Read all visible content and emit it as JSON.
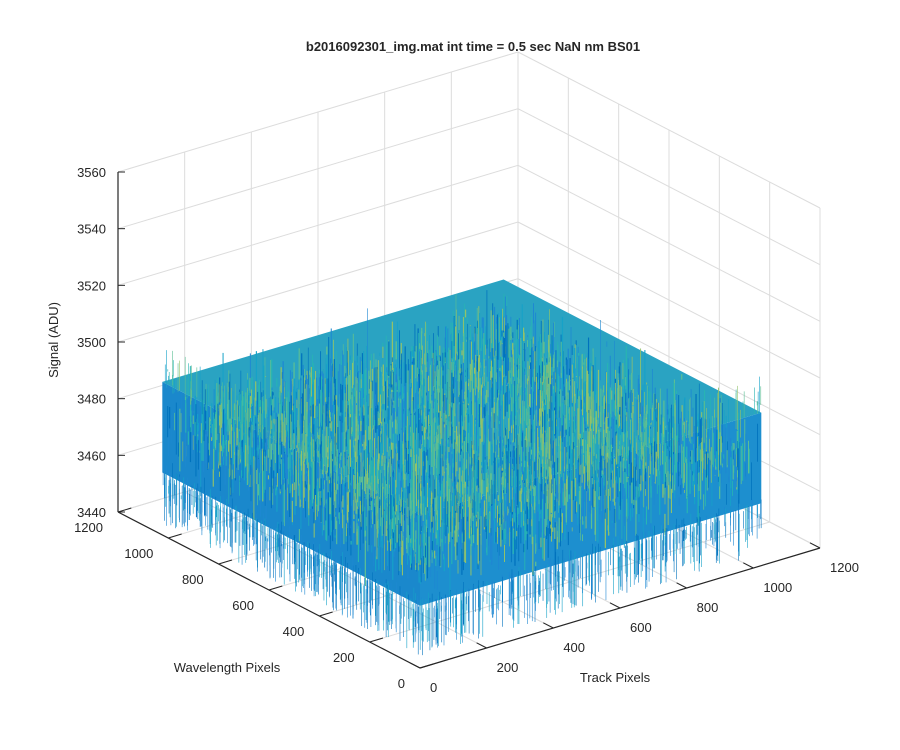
{
  "figure": {
    "background": "#ffffff",
    "axis_color": "#262626",
    "grid_color": "#dcdcdc"
  },
  "chart_data": {
    "type": "surface",
    "title": "b2016092301_img.mat int time = 0.5 sec  NaN nm BS01",
    "xlabel": "Track Pixels",
    "ylabel": "Wavelength Pixels",
    "zlabel": "Signal (ADU)",
    "xlim": [
      0,
      1200
    ],
    "ylim": [
      0,
      1200
    ],
    "zlim": [
      3440,
      3560
    ],
    "xticks": [
      "0",
      "200",
      "400",
      "600",
      "800",
      "1000",
      "1200"
    ],
    "yticks": [
      "0",
      "200",
      "400",
      "600",
      "800",
      "1000",
      "1200"
    ],
    "zticks": [
      "3440",
      "3460",
      "3480",
      "3500",
      "3520",
      "3540",
      "3560"
    ],
    "grid": true,
    "surface": {
      "data_extent_x": [
        0,
        1024
      ],
      "data_extent_y": [
        0,
        1024
      ],
      "mean_signal": 3478,
      "typical_min": 3462,
      "typical_max": 3494,
      "colormap": "parula",
      "colors": [
        "#0072bd",
        "#1e88d2",
        "#16a2c8",
        "#28b4b2",
        "#5cbf94",
        "#92c26a"
      ]
    }
  }
}
